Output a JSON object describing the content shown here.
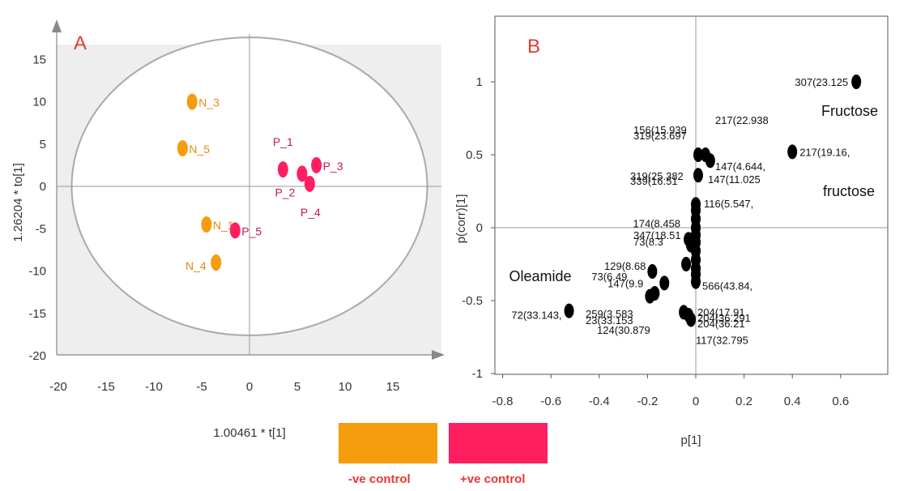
{
  "chart_data": [
    {
      "type": "scatter",
      "panel_label": "A",
      "xlabel": "1.00461 * t[1]",
      "ylabel": "1.26204 * to[1]",
      "xlim": [
        -20,
        20
      ],
      "ylim": [
        -20,
        18
      ],
      "xticks": [
        -20,
        -15,
        -10,
        -5,
        0,
        5,
        10,
        15
      ],
      "yticks": [
        15,
        10,
        5,
        0,
        -5,
        -10,
        -15,
        -20
      ],
      "ellipse": {
        "cx": 0,
        "cy": 0,
        "rx": 18.6,
        "ry": 17.6
      },
      "points": [
        {
          "label": "N_3",
          "x": -6,
          "y": 10,
          "group": "-ve control"
        },
        {
          "label": "N_5",
          "x": -7,
          "y": 4.5,
          "group": "-ve control"
        },
        {
          "label": "N_1",
          "x": -4.5,
          "y": -4.5,
          "group": "-ve control"
        },
        {
          "label": "N_4",
          "x": -3.5,
          "y": -9,
          "group": "-ve control"
        },
        {
          "label": "P_1",
          "x": 3.5,
          "y": 2,
          "group": "+ve control"
        },
        {
          "label": "P_2",
          "x": 5.5,
          "y": 1.5,
          "group": "+ve control"
        },
        {
          "label": "P_3",
          "x": 7,
          "y": 2.5,
          "group": "+ve control"
        },
        {
          "label": "P_4",
          "x": 6.3,
          "y": 0.3,
          "group": "+ve control"
        },
        {
          "label": "P_5",
          "x": -1.5,
          "y": -5.2,
          "group": "+ve control"
        }
      ]
    },
    {
      "type": "scatter",
      "panel_label": "B",
      "xlabel": "p[1]",
      "ylabel": "p(corr)[1]",
      "xlim": [
        -0.8,
        0.7
      ],
      "ylim": [
        -1,
        1.35
      ],
      "xticks": [
        -0.8,
        -0.6,
        -0.4,
        -0.2,
        0,
        0.2,
        0.4,
        0.6
      ],
      "yticks": [
        1,
        0.5,
        0,
        -0.5,
        -1
      ],
      "points": [
        {
          "label": "307(23.125",
          "x": 0.665,
          "y": 1.0
        },
        {
          "label": "217(19.16,",
          "x": 0.4,
          "y": 0.52
        },
        {
          "label": "217(22.938",
          "x": 0.01,
          "y": 0.5
        },
        {
          "label": "147(4.644,",
          "x": 0.06,
          "y": 0.46
        },
        {
          "label": "147(11.025",
          "x": 0.01,
          "y": 0.36
        },
        {
          "label": "116(5.547,",
          "x": 0.0,
          "y": 0.16
        },
        {
          "label": "72(33.143,",
          "x": -0.525,
          "y": -0.57
        },
        {
          "label": "117(32.795",
          "x": -0.02,
          "y": -0.63
        },
        {
          "label": "73(6.49",
          "x": -0.17,
          "y": -0.45
        },
        {
          "label": "147(9.9",
          "x": -0.13,
          "y": -0.38
        },
        {
          "label": "566(43.84,",
          "x": 0.0,
          "y": -0.37
        },
        {
          "label": "174(8.458",
          "x": -0.03,
          "y": -0.08
        },
        {
          "label": "",
          "x": -0.18,
          "y": -0.3
        },
        {
          "label": "",
          "x": -0.19,
          "y": -0.47
        },
        {
          "label": "",
          "x": -0.05,
          "y": -0.58
        },
        {
          "label": "",
          "x": -0.03,
          "y": -0.6
        },
        {
          "label": "",
          "x": 0.04,
          "y": 0.5
        },
        {
          "label": "",
          "x": 0.0,
          "y": 0.12
        },
        {
          "label": "",
          "x": 0.0,
          "y": 0.06
        },
        {
          "label": "",
          "x": 0.0,
          "y": 0.0
        },
        {
          "label": "",
          "x": 0.0,
          "y": -0.05
        },
        {
          "label": "",
          "x": 0.0,
          "y": -0.1
        },
        {
          "label": "",
          "x": 0.0,
          "y": -0.16
        },
        {
          "label": "",
          "x": 0.0,
          "y": -0.22
        },
        {
          "label": "",
          "x": 0.0,
          "y": -0.28
        },
        {
          "label": "",
          "x": 0.0,
          "y": -0.32
        },
        {
          "label": "",
          "x": -0.02,
          "y": -0.12
        },
        {
          "label": "",
          "x": -0.04,
          "y": -0.25
        }
      ],
      "overlap_labels": [
        "156(15.939",
        "319(23.697",
        "319(25.382",
        "339(16.51",
        "347(18.51",
        "73(8.3",
        "129(8.68",
        "259(3.583",
        "23(33.153",
        "124(30.879",
        "204(17.91",
        "204(36.291",
        "204(36.21"
      ],
      "annotations": [
        "Fructose",
        "fructose",
        "Oleamide"
      ]
    }
  ],
  "legend": [
    {
      "label": "-ve control",
      "color": "#f59d0c"
    },
    {
      "label": "+ve control",
      "color": "#ff1f60"
    }
  ],
  "colors": {
    "neg": "#f59d0c",
    "pos": "#ff1f60",
    "marker": "#000000",
    "panel_text": "#e53935"
  }
}
